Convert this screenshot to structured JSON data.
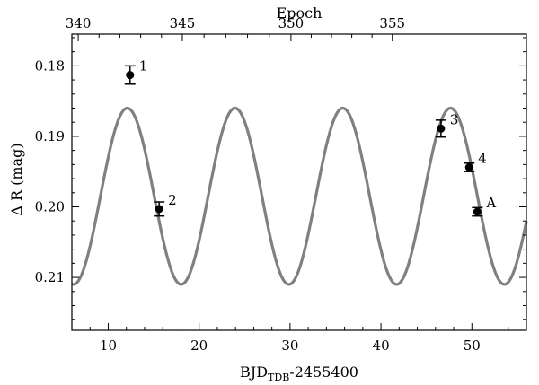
{
  "chart_data": {
    "type": "scatter",
    "title": "",
    "xlabel": {
      "main": "BJD",
      "sub": "TDB",
      "suffix": "-2455400"
    },
    "ylabel": "Δ R (mag)",
    "top_xlabel": "Epoch",
    "xlim": [
      6,
      56
    ],
    "ylim": [
      0.2175,
      0.1755
    ],
    "y_inverted": true,
    "x_ticks": [
      10,
      20,
      30,
      40,
      50
    ],
    "y_ticks": [
      0.18,
      0.19,
      0.2,
      0.21
    ],
    "y_tick_labels": [
      "0.18",
      "0.19",
      "0.20",
      "0.21"
    ],
    "top_ticks": [
      {
        "label": "340",
        "x": 6.7
      },
      {
        "label": "345",
        "x": 18.15
      },
      {
        "label": "350",
        "x": 30.1
      },
      {
        "label": "355",
        "x": 41.25
      }
    ],
    "model_curve": {
      "color": "#808080",
      "mean": 0.1985,
      "amplitude": 0.0125,
      "period": 11.85,
      "peak_x": 12.1
    },
    "points": [
      {
        "label": "1",
        "x": 12.4,
        "y": 0.1813,
        "yerr": 0.0013
      },
      {
        "label": "2",
        "x": 15.6,
        "y": 0.2003,
        "yerr": 0.001
      },
      {
        "label": "3",
        "x": 46.6,
        "y": 0.1889,
        "yerr": 0.0012
      },
      {
        "label": "4",
        "x": 49.7,
        "y": 0.1944,
        "yerr": 0.0006
      },
      {
        "label": "A",
        "x": 50.6,
        "y": 0.2007,
        "yerr": 0.0006
      }
    ]
  }
}
